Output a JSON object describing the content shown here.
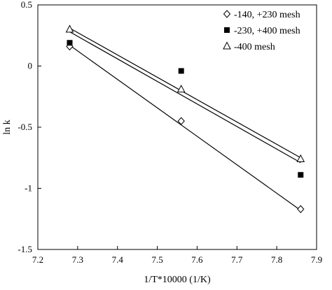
{
  "chart_data": {
    "type": "scatter",
    "xlabel": "1/T*10000 (1/K)",
    "ylabel": "ln k",
    "xlim": [
      7.2,
      7.9
    ],
    "ylim": [
      -1.5,
      0.5
    ],
    "x_ticks": [
      "7.2",
      "7.3",
      "7.4",
      "7.5",
      "7.6",
      "7.7",
      "7.8",
      "7.9"
    ],
    "y_ticks": [
      "-1.5",
      "-1",
      "-0.5",
      "0",
      "0.5"
    ],
    "grid": false,
    "legend_position": "top-right",
    "series": [
      {
        "name": "-140, +230 mesh",
        "marker": "diamond-open",
        "x": [
          7.28,
          7.56,
          7.86
        ],
        "y": [
          0.16,
          -0.45,
          -1.17
        ],
        "trendline": {
          "x": [
            7.28,
            7.86
          ],
          "y": [
            0.17,
            -1.18
          ]
        }
      },
      {
        "name": "-230, +400 mesh",
        "marker": "square-filled",
        "x": [
          7.28,
          7.56,
          7.86
        ],
        "y": [
          0.19,
          -0.04,
          -0.89
        ],
        "trendline": null
      },
      {
        "name": "-400 mesh",
        "marker": "triangle-open",
        "x": [
          7.28,
          7.56,
          7.86
        ],
        "y": [
          0.3,
          -0.19,
          -0.76
        ],
        "trendline": [
          {
            "x": [
              7.28,
              7.86
            ],
            "y": [
              0.31,
              -0.75
            ]
          },
          {
            "x": [
              7.28,
              7.86
            ],
            "y": [
              0.28,
              -0.79
            ]
          }
        ]
      }
    ]
  }
}
